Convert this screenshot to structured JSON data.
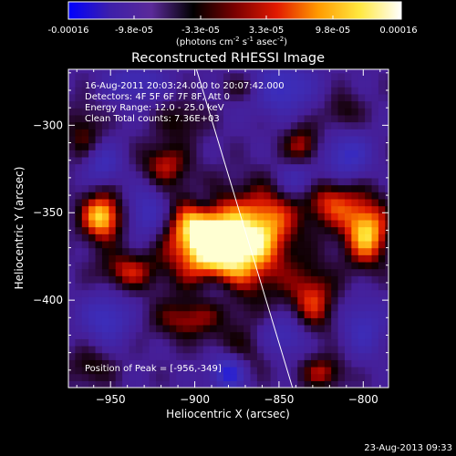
{
  "colorbar": {
    "tick_labels": [
      "-0.00016",
      "-9.8e-05",
      "-3.3e-05",
      "3.3e-05",
      "9.8e-05",
      "0.00016"
    ],
    "units_text": "(photons cm",
    "units_exp1": "-2",
    "units_mid": " s",
    "units_exp2": "-1",
    "units_tail": " asec",
    "units_exp3": "-2",
    "units_close": ")",
    "stops": [
      "#0000ff",
      "#3d1faa",
      "#5b2a99",
      "#000000",
      "#7a0000",
      "#e11900",
      "#ff9a00",
      "#ffe840",
      "#ffffff"
    ]
  },
  "chart_data": {
    "type": "heatmap",
    "title": "Reconstructed RHESSI Image",
    "xlabel": "Heliocentric X (arcsec)",
    "ylabel": "Heliocentric Y (arcsec)",
    "xlim": [
      -975,
      -785
    ],
    "ylim": [
      -450,
      -268
    ],
    "x_ticks": [
      -950,
      -900,
      -850,
      -800
    ],
    "y_ticks": [
      -300,
      -350,
      -400
    ],
    "info_lines": [
      "16-Aug-2011 20:03:24.000 to 20:07:42.000",
      "Detectors: 4F 5F 6F 7F 8F, Att 0",
      "Energy Range: 12.0 - 25.0 keV",
      "Clean     Total counts: 7.36E+03"
    ],
    "peak_label": "Position of Peak = [-956,-349]",
    "peak": [
      -956,
      -349
    ],
    "limb_line": [
      [
        -899,
        -268
      ],
      [
        -842,
        -450
      ]
    ],
    "sources": [
      {
        "x": -878,
        "y": -372,
        "sx": 22,
        "sy": 20,
        "a": 1.0
      },
      {
        "x": -900,
        "y": -360,
        "sx": 14,
        "sy": 14,
        "a": 0.6
      },
      {
        "x": -856,
        "y": -352,
        "sx": 12,
        "sy": 14,
        "a": 0.45
      },
      {
        "x": -955,
        "y": -352,
        "sx": 9,
        "sy": 10,
        "a": 0.95
      },
      {
        "x": -966,
        "y": -305,
        "sx": 8,
        "sy": 12,
        "a": 0.4
      },
      {
        "x": -918,
        "y": -322,
        "sx": 10,
        "sy": 9,
        "a": 0.55
      },
      {
        "x": -908,
        "y": -297,
        "sx": 10,
        "sy": 8,
        "a": 0.35
      },
      {
        "x": -820,
        "y": -343,
        "sx": 12,
        "sy": 11,
        "a": 0.6
      },
      {
        "x": -798,
        "y": -361,
        "sx": 10,
        "sy": 14,
        "a": 0.9
      },
      {
        "x": -836,
        "y": -312,
        "sx": 8,
        "sy": 9,
        "a": 0.55
      },
      {
        "x": -868,
        "y": -278,
        "sx": 10,
        "sy": 6,
        "a": 0.4
      },
      {
        "x": -940,
        "y": -383,
        "sx": 12,
        "sy": 8,
        "a": 0.55
      },
      {
        "x": -906,
        "y": -411,
        "sx": 14,
        "sy": 8,
        "a": 0.45
      },
      {
        "x": -830,
        "y": -400,
        "sx": 10,
        "sy": 14,
        "a": 0.6
      },
      {
        "x": -874,
        "y": -431,
        "sx": 12,
        "sy": 10,
        "a": 0.4
      },
      {
        "x": -824,
        "y": -441,
        "sx": 10,
        "sy": 7,
        "a": 0.5
      },
      {
        "x": -962,
        "y": -438,
        "sx": 10,
        "sy": 8,
        "a": 0.35
      },
      {
        "x": -812,
        "y": -292,
        "sx": 8,
        "sy": 8,
        "a": 0.35
      },
      {
        "x": -850,
        "y": -278,
        "sx": 14,
        "sy": 10,
        "a": -0.65
      },
      {
        "x": -935,
        "y": -275,
        "sx": 12,
        "sy": 8,
        "a": -0.45
      },
      {
        "x": -955,
        "y": -322,
        "sx": 8,
        "sy": 8,
        "a": -0.5
      },
      {
        "x": -928,
        "y": -350,
        "sx": 9,
        "sy": 11,
        "a": -0.55
      },
      {
        "x": -838,
        "y": -330,
        "sx": 9,
        "sy": 8,
        "a": -0.5
      },
      {
        "x": -810,
        "y": -318,
        "sx": 10,
        "sy": 10,
        "a": -0.6
      },
      {
        "x": -886,
        "y": -394,
        "sx": 10,
        "sy": 7,
        "a": -0.4
      },
      {
        "x": -952,
        "y": -410,
        "sx": 10,
        "sy": 10,
        "a": -0.55
      },
      {
        "x": -846,
        "y": -420,
        "sx": 10,
        "sy": 9,
        "a": -0.5
      },
      {
        "x": -880,
        "y": -440,
        "sx": 8,
        "sy": 8,
        "a": -0.9
      },
      {
        "x": -800,
        "y": -415,
        "sx": 9,
        "sy": 12,
        "a": -0.45
      },
      {
        "x": -895,
        "y": -342,
        "sx": 6,
        "sy": 6,
        "a": -0.3
      }
    ]
  },
  "timestamp": "23-Aug-2013 09:33"
}
